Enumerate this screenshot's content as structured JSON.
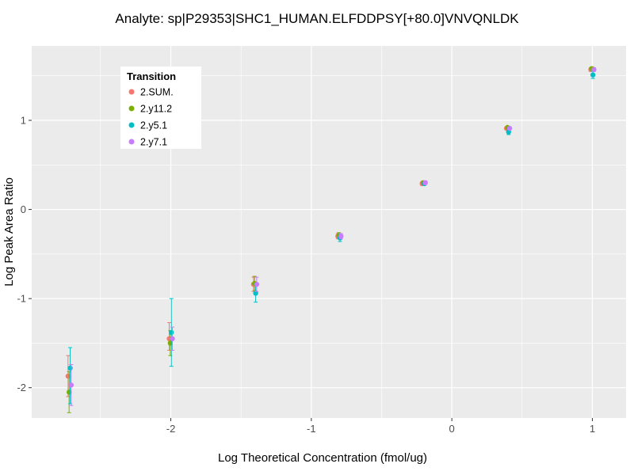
{
  "chart_data": {
    "type": "scatter",
    "title": "Analyte: sp|P29353|SHC1_HUMAN.ELFDDPSY[+80.0]VNVQNLDK",
    "xlabel": "Log Theoretical Concentration (fmol/ug)",
    "ylabel": "Log Peak Area Ratio",
    "xlim": [
      -2.99,
      1.24
    ],
    "ylim": [
      -2.34,
      1.835
    ],
    "x_ticks": [
      -2,
      -1,
      0,
      1
    ],
    "y_ticks": [
      -2,
      -1,
      0,
      1
    ],
    "grid": true,
    "panel_color": "#EBEBEB",
    "grid_color": "#FFFFFF",
    "tick_label_color": "#4D4D4D",
    "legend": {
      "title": "Transition",
      "position": "inside-top-left"
    },
    "x": [
      -2.72,
      -2.0,
      -1.4,
      -0.8,
      -0.2,
      0.4,
      1.0
    ],
    "series": [
      {
        "name": "2.SUM.",
        "color": "#F8766D",
        "y": [
          -1.87,
          -1.45,
          -0.84,
          -0.3,
          0.29,
          0.91,
          1.57
        ],
        "ylo": [
          -2.1,
          -1.58,
          -0.92,
          -0.33,
          0.27,
          0.9,
          1.55
        ],
        "yhi": [
          -1.64,
          -1.27,
          -0.76,
          -0.27,
          0.31,
          0.92,
          1.59
        ]
      },
      {
        "name": "2.y11.2",
        "color": "#7CAE00",
        "y": [
          -2.05,
          -1.5,
          -0.83,
          -0.29,
          0.3,
          0.92,
          1.58
        ],
        "ylo": [
          -2.28,
          -1.64,
          -0.91,
          -0.32,
          0.28,
          0.91,
          1.56
        ],
        "yhi": [
          -1.82,
          -1.36,
          -0.75,
          -0.26,
          0.32,
          0.93,
          1.6
        ]
      },
      {
        "name": "2.y5.1",
        "color": "#00BFC4",
        "y": [
          -1.78,
          -1.38,
          -0.94,
          -0.32,
          0.29,
          0.87,
          1.51
        ],
        "ylo": [
          -2.18,
          -1.76,
          -1.04,
          -0.36,
          0.27,
          0.84,
          1.47
        ],
        "yhi": [
          -1.55,
          -1.0,
          -0.84,
          -0.28,
          0.31,
          0.9,
          1.55
        ]
      },
      {
        "name": "2.y7.1",
        "color": "#C77CFF",
        "y": [
          -1.97,
          -1.45,
          -0.84,
          -0.3,
          0.3,
          0.91,
          1.57
        ],
        "ylo": [
          -2.2,
          -1.58,
          -0.92,
          -0.33,
          0.28,
          0.9,
          1.55
        ],
        "yhi": [
          -1.74,
          -1.32,
          -0.76,
          -0.27,
          0.32,
          0.92,
          1.59
        ]
      }
    ]
  }
}
